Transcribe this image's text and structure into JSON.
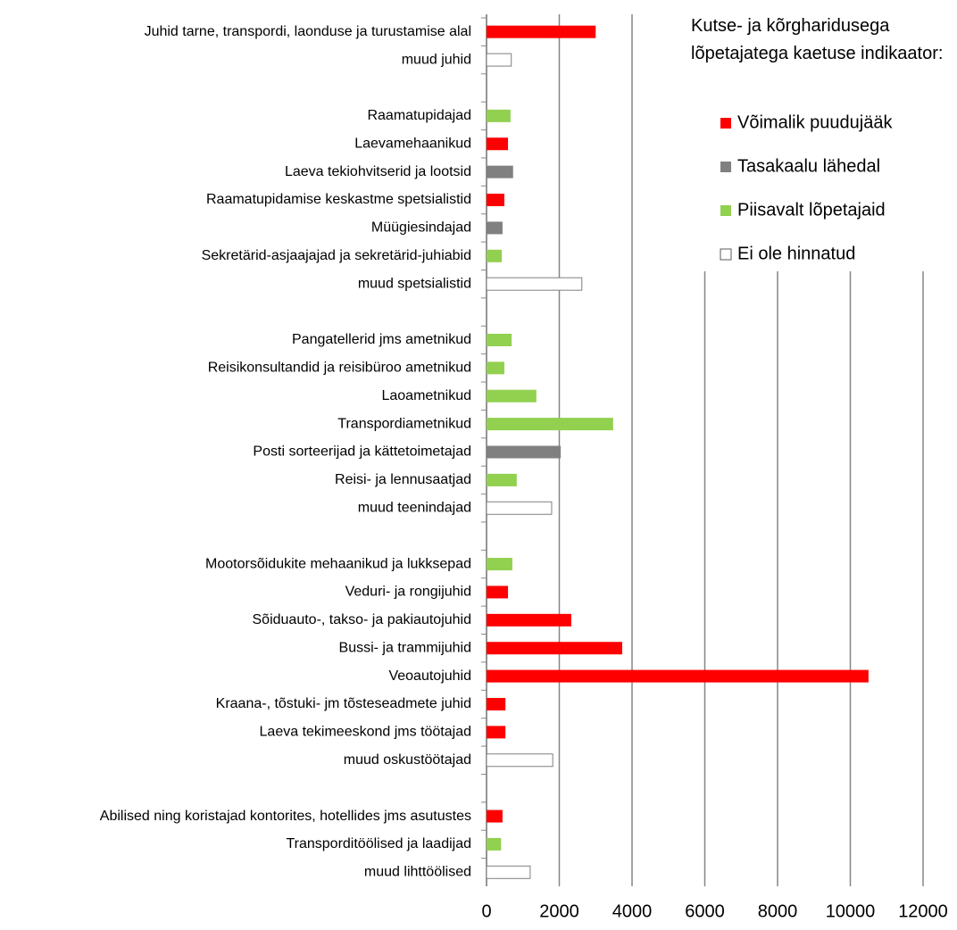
{
  "chart_data": {
    "type": "barh",
    "legend_title": "Kutse- ja kõrgharidusega lõpetajatega kaetuse indikaator:",
    "categories": [
      "Juhid tarne, transpordi, laonduse ja turustamise alal",
      "muud juhid",
      null,
      "Raamatupidajad",
      "Laevamehaanikud",
      "Laeva tekiohvitserid ja lootsid",
      "Raamatupidamise keskastme spetsialistid",
      "Müügiesindajad",
      "Sekretärid-asjaajajad ja sekretärid-juhiabid",
      "muud spetsialistid",
      null,
      "Pangatellerid jms ametnikud",
      "Reisikonsultandid ja reisibüroo ametnikud",
      "Laoametnikud",
      "Transpordiametnikud",
      "Posti sorteerijad ja kättetoimetajad",
      "Reisi- ja lennusaatjad",
      "muud teenindajad",
      null,
      "Mootorsõidukite mehaanikud ja lukksepad",
      "Veduri- ja rongijuhid",
      "Sõiduauto-, takso- ja pakiautojuhid",
      "Bussi- ja trammijuhid",
      "Veoautojuhid",
      "Kraana-, tõstuki- jm tõsteseadmete juhid",
      "Laeva tekimeeskond jms töötajad",
      "muud oskustöötajad",
      null,
      "Abilised ning koristajad kontorites, hotellides jms asutustes",
      "Transporditöölised ja laadijad",
      "muud lihttöölised"
    ],
    "series": [
      {
        "name": "Võimalik puudujääk",
        "color": "#ff0000",
        "values": [
          3000,
          null,
          null,
          null,
          590,
          null,
          490,
          null,
          null,
          null,
          null,
          null,
          null,
          null,
          null,
          null,
          null,
          null,
          null,
          null,
          590,
          2330,
          3730,
          10500,
          520,
          520,
          null,
          null,
          440,
          null,
          null
        ]
      },
      {
        "name": "Tasakaalu lähedal",
        "color": "#808080",
        "values": [
          null,
          null,
          null,
          null,
          null,
          730,
          null,
          440,
          null,
          null,
          null,
          null,
          null,
          null,
          null,
          2040,
          null,
          null,
          null,
          null,
          null,
          null,
          null,
          null,
          null,
          null,
          null,
          null,
          null,
          null,
          null
        ]
      },
      {
        "name": "Piisavalt lõpetajaid",
        "color": "#92d050",
        "values": [
          null,
          null,
          null,
          660,
          null,
          null,
          null,
          null,
          420,
          null,
          null,
          690,
          490,
          1370,
          3480,
          null,
          830,
          null,
          null,
          710,
          null,
          null,
          null,
          null,
          null,
          null,
          null,
          null,
          null,
          400,
          null
        ]
      },
      {
        "name": "Ei ole hinnatud",
        "color": "#ffffff",
        "values": [
          null,
          680,
          null,
          null,
          null,
          null,
          null,
          null,
          null,
          2620,
          null,
          null,
          null,
          null,
          null,
          null,
          null,
          1790,
          null,
          null,
          null,
          null,
          null,
          null,
          null,
          null,
          1820,
          null,
          null,
          null,
          1200
        ]
      }
    ],
    "xlim": [
      0,
      12000
    ],
    "xticks": [
      0,
      2000,
      4000,
      6000,
      8000,
      10000,
      12000
    ],
    "grid": true
  }
}
